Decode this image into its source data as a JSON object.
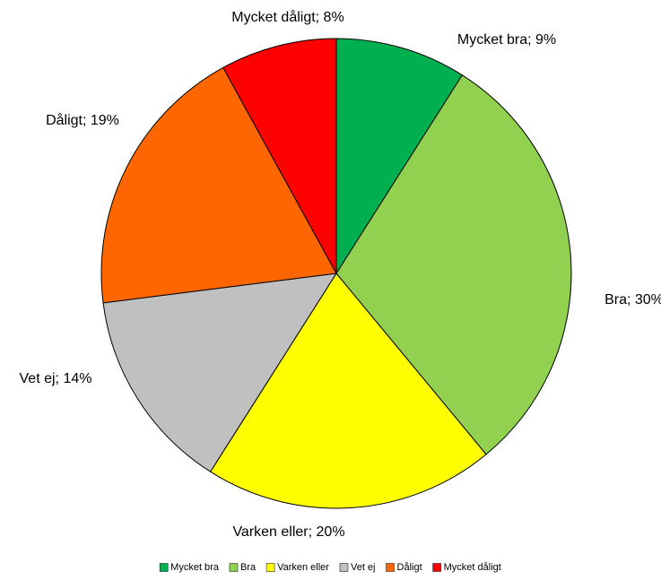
{
  "chart_data": {
    "type": "pie",
    "categories": [
      "Mycket bra",
      "Bra",
      "Varken eller",
      "Vet ej",
      "Dåligt",
      "Mycket dåligt"
    ],
    "values": [
      9,
      30,
      20,
      14,
      19,
      8
    ],
    "value_labels": [
      "Mycket bra; 9%",
      "Bra; 30%",
      "Varken eller; 20%",
      "Vet ej; 14%",
      "Dåligt; 19%",
      "Mycket dåligt; 8%"
    ],
    "colors": [
      "#00b050",
      "#92d050",
      "#ffff00",
      "#c0c0c0",
      "#ff6600",
      "#ff0000"
    ],
    "legend": "bottom"
  }
}
